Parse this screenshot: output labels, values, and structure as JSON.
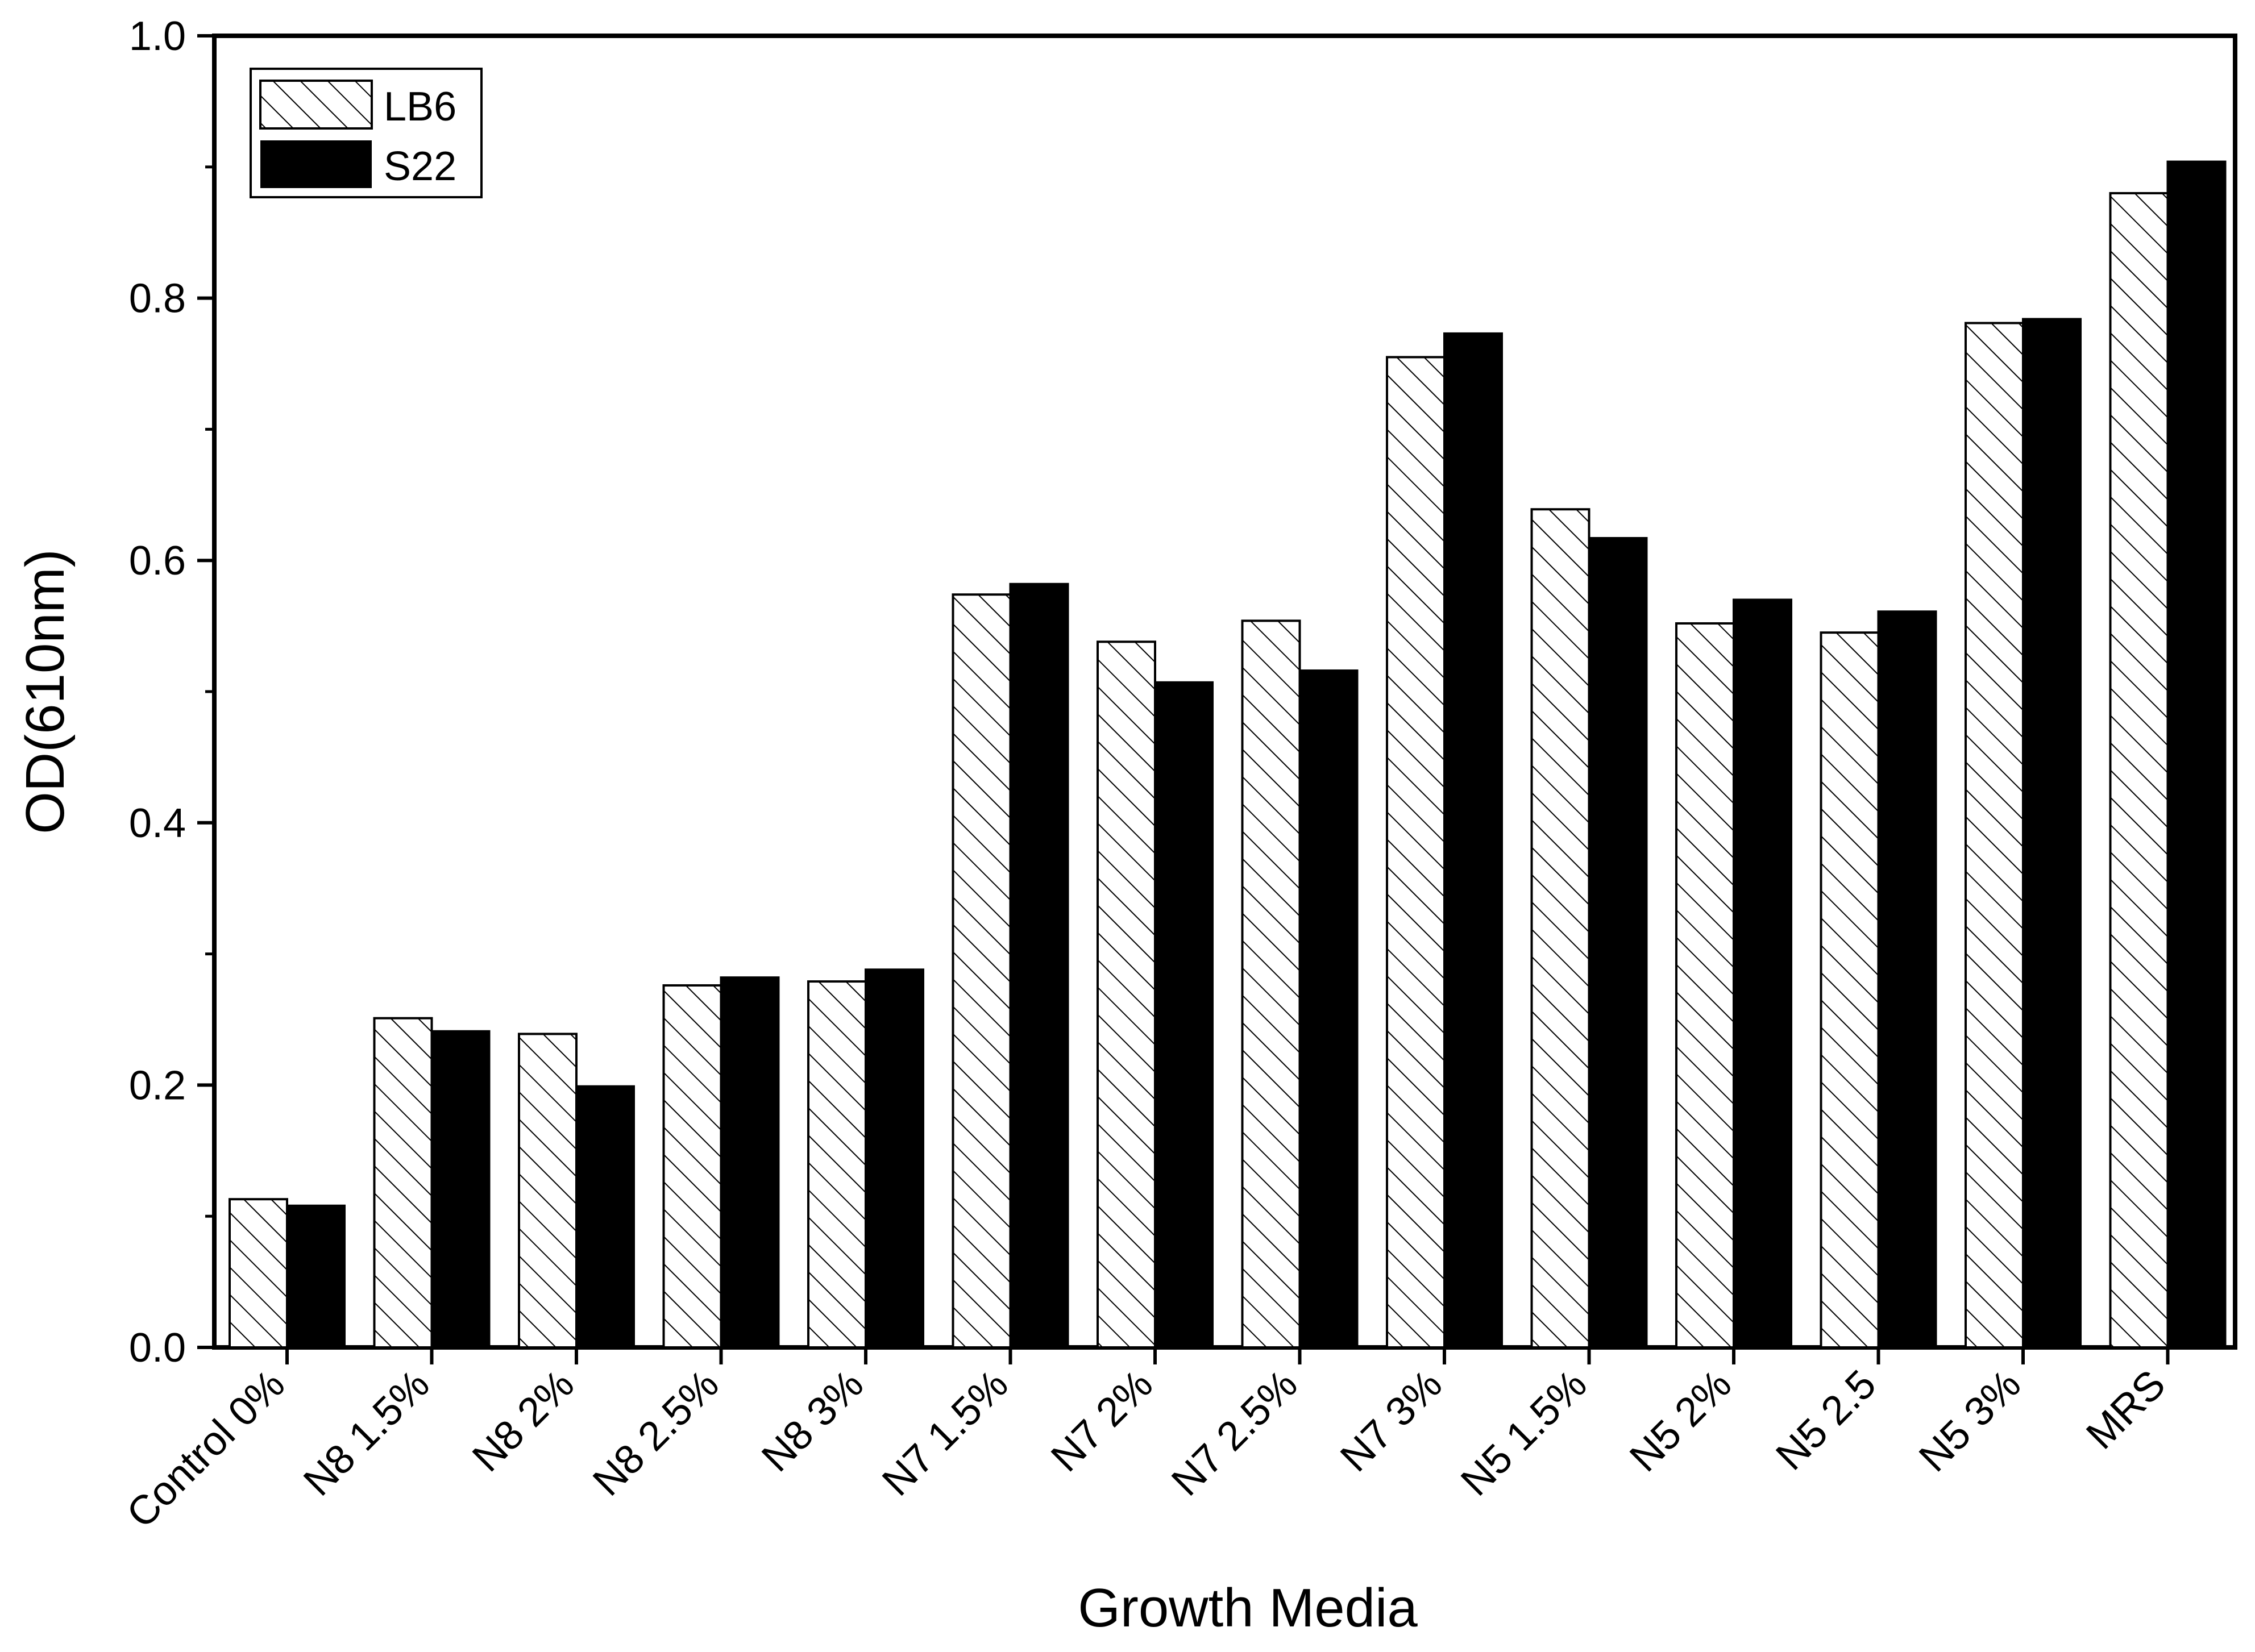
{
  "chart_data": {
    "type": "bar",
    "title": "",
    "xlabel": "Growth Media",
    "ylabel": "OD(610nm)",
    "ylim": [
      0,
      1.0
    ],
    "yticks": [
      "0.0",
      "0.2",
      "0.4",
      "0.6",
      "0.8",
      "1.0"
    ],
    "grid": false,
    "legend_position": "top-left",
    "categories": [
      "Control 0%",
      "N8 1.5%",
      "N8 2%",
      "N8 2.5%",
      "N8 3%",
      "N7  1.5%",
      "N7 2%",
      "N7 2.5%",
      "N7  3%",
      "N5 1.5%",
      "N5 2%",
      "N5 2.5",
      "N5 3%",
      "MRS"
    ],
    "series": [
      {
        "name": "LB6",
        "fill": "hatched",
        "values": [
          0.113,
          0.251,
          0.239,
          0.276,
          0.279,
          0.574,
          0.538,
          0.554,
          0.755,
          0.639,
          0.552,
          0.545,
          0.781,
          0.88
        ]
      },
      {
        "name": "S22",
        "fill": "#000000",
        "values": [
          0.108,
          0.241,
          0.199,
          0.282,
          0.288,
          0.582,
          0.507,
          0.516,
          0.773,
          0.617,
          0.57,
          0.561,
          0.784,
          0.904
        ]
      }
    ]
  }
}
